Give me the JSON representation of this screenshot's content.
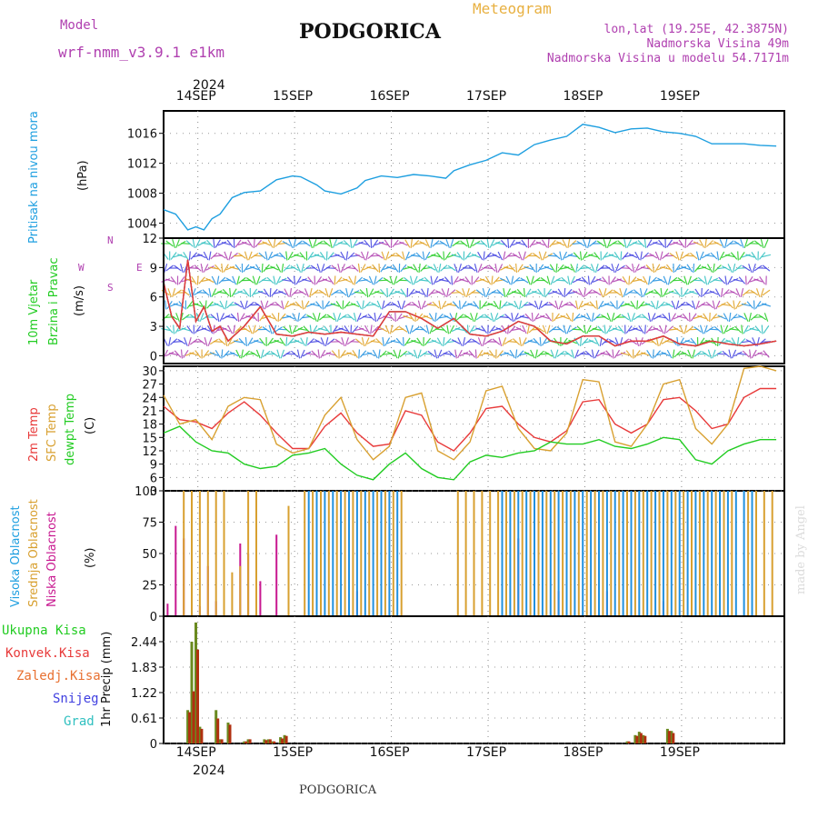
{
  "header": {
    "model_label": "Model",
    "model_name": "wrf-nmm_v3.9.1 e1km",
    "title": "PODGORICA",
    "meteogram": "Meteogram",
    "lonlat": "lon,lat (19.25E, 42.3875N)",
    "altitude": "Nadmorska Visina 49m",
    "model_altitude": "Nadmorska Visina u modelu 54.7171m"
  },
  "footer": {
    "station": "PODGORICA",
    "credit": "made by Angel"
  },
  "colors": {
    "pressure": "#1e9fe0",
    "red": "#e83a3a",
    "orange": "#d8a030",
    "green": "#22cc22",
    "purple": "#b040b0",
    "magenta": "#c81890",
    "blue": "#2090e0",
    "snow": "#4040e0",
    "grad": "#30c0c0",
    "dark_red": "#b03010",
    "olive": "#6a8a20"
  },
  "time_axis": {
    "year": "2024",
    "days": [
      "14SEP",
      "15SEP",
      "16SEP",
      "17SEP",
      "18SEP",
      "19SEP"
    ]
  },
  "panels": {
    "pressure": {
      "label1": "Pritisak na nivou mora",
      "unit": "(hPa)"
    },
    "wind": {
      "label1": "10m Vjetar",
      "label2": "Brzina i Pravac",
      "unit": "(m/s)",
      "compass_n": "N",
      "compass_s": "S",
      "compass_e": "E",
      "compass_w": "W"
    },
    "temp": {
      "label1": "2m Temp",
      "label2": "SFC Temp",
      "label3": "dewpt Temp",
      "unit": "(C)"
    },
    "cloud": {
      "label1": "Visoka Oblacnost",
      "label2": "Srednja Oblacnost",
      "label3": "Niska Oblacnost",
      "unit": "(%)"
    },
    "precip": {
      "label": "1hr Precip (mm)",
      "legend": [
        "Ukupna Kisa",
        "Konvek.Kisa",
        "Zaledj.Kisa",
        "Snijeg",
        "Grad"
      ]
    }
  },
  "chart_data": [
    {
      "type": "line",
      "panel": "pressure",
      "ylabel": "(hPa)",
      "ylim": [
        1002,
        1019
      ],
      "yticks": [
        1004,
        1008,
        1012,
        1016
      ],
      "x_hours": [
        0,
        3,
        6,
        8,
        10,
        12,
        14,
        17,
        20,
        24,
        28,
        32,
        34,
        38,
        40,
        44,
        48,
        50,
        54,
        58,
        62,
        66,
        70,
        72,
        76,
        80,
        84,
        88,
        92,
        96,
        100,
        104,
        108,
        112,
        116,
        120,
        124,
        128,
        132,
        136,
        140,
        144,
        148,
        152
      ],
      "series": [
        {
          "values": [
            1005.8,
            1005.2,
            1003.1,
            1003.5,
            1003.1,
            1004.6,
            1005.2,
            1007.4,
            1008.1,
            1008.3,
            1009.8,
            1010.3,
            1010.2,
            1009.1,
            1008.3,
            1007.9,
            1008.7,
            1009.7,
            1010.3,
            1010.1,
            1010.5,
            1010.3,
            1010.0,
            1011.0,
            1011.8,
            1012.4,
            1013.4,
            1013.1,
            1014.5,
            1015.1,
            1015.6,
            1017.2,
            1016.8,
            1016.1,
            1016.6,
            1016.7,
            1016.2,
            1016.0,
            1015.6,
            1014.6,
            1014.6,
            1014.6,
            1014.4,
            1014.3
          ]
        }
      ]
    },
    {
      "type": "line",
      "panel": "wind",
      "ylabel": "(m/s)",
      "ylim": [
        -0.8,
        12
      ],
      "yticks": [
        0,
        3,
        6,
        9,
        12
      ],
      "x_hours": [
        0,
        2,
        4,
        6,
        8,
        10,
        12,
        14,
        16,
        20,
        24,
        28,
        32,
        36,
        40,
        44,
        48,
        52,
        56,
        60,
        64,
        68,
        72,
        76,
        80,
        84,
        88,
        92,
        96,
        100,
        104,
        108,
        112,
        116,
        120,
        124,
        128,
        132,
        136,
        140,
        144,
        148,
        152
      ],
      "series": [
        {
          "name": "speed",
          "values": [
            7.5,
            4.0,
            2.8,
            9.8,
            3.5,
            5.0,
            2.5,
            3.0,
            1.5,
            3.0,
            5.0,
            2.2,
            2.0,
            2.4,
            2.2,
            2.4,
            2.2,
            2.0,
            4.5,
            4.5,
            3.8,
            2.8,
            3.8,
            2.2,
            2.0,
            2.5,
            3.5,
            3.0,
            1.5,
            1.2,
            2.0,
            2.0,
            1.0,
            1.5,
            1.5,
            2.0,
            1.2,
            1.0,
            1.5,
            1.2,
            1.0,
            1.2,
            1.5
          ]
        }
      ]
    },
    {
      "type": "line",
      "panel": "temp",
      "ylabel": "(C)",
      "ylim": [
        3,
        31
      ],
      "yticks": [
        3,
        6,
        9,
        12,
        15,
        18,
        21,
        24,
        27,
        30
      ],
      "x_hours": [
        0,
        4,
        8,
        12,
        16,
        20,
        24,
        28,
        32,
        36,
        40,
        44,
        48,
        52,
        56,
        60,
        64,
        68,
        72,
        76,
        80,
        84,
        88,
        92,
        96,
        100,
        104,
        108,
        112,
        116,
        120,
        124,
        128,
        132,
        136,
        140,
        144,
        148,
        152
      ],
      "series": [
        {
          "name": "2m Temp",
          "values": [
            22,
            19,
            18.5,
            17,
            20.5,
            23,
            20,
            16,
            12.5,
            12.5,
            17.5,
            20.5,
            16,
            13,
            13.5,
            21,
            20,
            14,
            12,
            16,
            21.5,
            22,
            18,
            15,
            14,
            16.5,
            23,
            23.5,
            18,
            16,
            18,
            23.5,
            24,
            21,
            17,
            18,
            24,
            26,
            26
          ]
        },
        {
          "name": "SFC Temp",
          "values": [
            24.5,
            18,
            19,
            14.5,
            22,
            24,
            23.5,
            13.5,
            11.5,
            12.5,
            20,
            24,
            14.5,
            10,
            13,
            24,
            25,
            12,
            10,
            14,
            25.5,
            26.5,
            17,
            12.5,
            12,
            16,
            28,
            27.5,
            14,
            13,
            18,
            27,
            28,
            17,
            13.5,
            18,
            30.5,
            31,
            30
          ]
        },
        {
          "name": "dewpt Temp",
          "values": [
            16,
            17.5,
            14,
            12,
            11.5,
            9,
            8,
            8.5,
            11,
            11.5,
            12.5,
            9,
            6.5,
            5.5,
            9,
            11.5,
            8,
            6,
            5.5,
            9.5,
            11,
            10.5,
            11.5,
            12,
            14,
            13.5,
            13.5,
            14.5,
            13,
            12.5,
            13.5,
            15,
            14.5,
            10,
            9,
            12,
            13.5,
            14.5,
            14.5
          ]
        }
      ]
    },
    {
      "type": "bar",
      "panel": "cloud",
      "ylabel": "(%)",
      "ylim": [
        0,
        100
      ],
      "yticks": [
        0,
        25,
        50,
        75,
        100
      ],
      "series": [
        {
          "name": "Niska Oblacnost",
          "x_hours": [
            1,
            3,
            5,
            7,
            9,
            11,
            13,
            15,
            19,
            21,
            24,
            28,
            48,
            62,
            88,
            98,
            110,
            124
          ],
          "values": [
            10,
            72,
            62,
            68,
            8,
            40,
            12,
            10,
            58,
            50,
            28,
            65,
            20,
            0,
            62,
            20,
            20,
            12
          ]
        },
        {
          "name": "Srednja Oblacnost",
          "x_hours": [
            5,
            7,
            9,
            11,
            13,
            15,
            17,
            19,
            21,
            23,
            25,
            27,
            29,
            31,
            35,
            37,
            39,
            41,
            43,
            45,
            47,
            49,
            51,
            53,
            55,
            57,
            59,
            73,
            75,
            77,
            79,
            81,
            83,
            85,
            87,
            89,
            91,
            93,
            95,
            97,
            99,
            101,
            103,
            105,
            107,
            109,
            111,
            113,
            115,
            117,
            119,
            121,
            123,
            125,
            127,
            129,
            131,
            133,
            135,
            137,
            139,
            141,
            145,
            147,
            149,
            151
          ],
          "values": [
            100,
            100,
            100,
            100,
            100,
            100,
            35,
            40,
            100,
            100,
            0,
            0,
            0,
            88,
            100,
            100,
            100,
            100,
            100,
            100,
            100,
            100,
            100,
            100,
            100,
            100,
            100,
            100,
            100,
            100,
            100,
            100,
            100,
            100,
            100,
            100,
            100,
            100,
            100,
            100,
            100,
            100,
            100,
            100,
            100,
            100,
            100,
            100,
            100,
            100,
            100,
            100,
            100,
            100,
            100,
            100,
            100,
            100,
            100,
            100,
            100,
            100,
            100,
            100,
            100,
            100
          ]
        },
        {
          "name": "Visoka Oblacnost",
          "x_hours": [
            36,
            38,
            40,
            42,
            44,
            46,
            48,
            50,
            52,
            54,
            56,
            58,
            84,
            86,
            88,
            90,
            92,
            94,
            96,
            98,
            100,
            102,
            104,
            106,
            108,
            110,
            112,
            114,
            116,
            118,
            120,
            122,
            124,
            126,
            128,
            130,
            132,
            134,
            136,
            138,
            140,
            142,
            144,
            146
          ],
          "values": [
            100,
            100,
            100,
            100,
            100,
            100,
            100,
            100,
            100,
            100,
            100,
            100,
            100,
            100,
            100,
            100,
            100,
            100,
            100,
            100,
            100,
            100,
            100,
            100,
            100,
            100,
            100,
            100,
            100,
            100,
            100,
            100,
            100,
            100,
            100,
            100,
            100,
            100,
            100,
            100,
            100,
            100,
            100,
            100
          ]
        }
      ]
    },
    {
      "type": "bar",
      "panel": "precip",
      "ylabel": "1hr Precip (mm)",
      "ylim": [
        0,
        3.05
      ],
      "yticks": [
        0,
        0.61,
        1.22,
        1.83,
        2.44
      ],
      "series": [
        {
          "name": "Ukupna Kisa",
          "x_hours": [
            6,
            7,
            8,
            9,
            13,
            14,
            16,
            20,
            21,
            25,
            26,
            27,
            29,
            30,
            115,
            117,
            118,
            119,
            125,
            126
          ],
          "values": [
            0.8,
            2.44,
            2.9,
            0.4,
            0.8,
            0.1,
            0.5,
            0.05,
            0.1,
            0.1,
            0.1,
            0.05,
            0.15,
            0.2,
            0.05,
            0.2,
            0.28,
            0.2,
            0.35,
            0.3
          ]
        },
        {
          "name": "Konvek.Kisa",
          "x_hours": [
            6,
            7,
            8,
            9,
            13,
            14,
            16,
            20,
            21,
            25,
            26,
            27,
            29,
            30,
            115,
            117,
            118,
            119,
            125,
            126
          ],
          "values": [
            0.75,
            1.25,
            2.25,
            0.35,
            0.6,
            0.1,
            0.45,
            0.05,
            0.1,
            0.08,
            0.1,
            0.05,
            0.12,
            0.18,
            0.05,
            0.18,
            0.25,
            0.18,
            0.3,
            0.25
          ]
        }
      ]
    }
  ]
}
